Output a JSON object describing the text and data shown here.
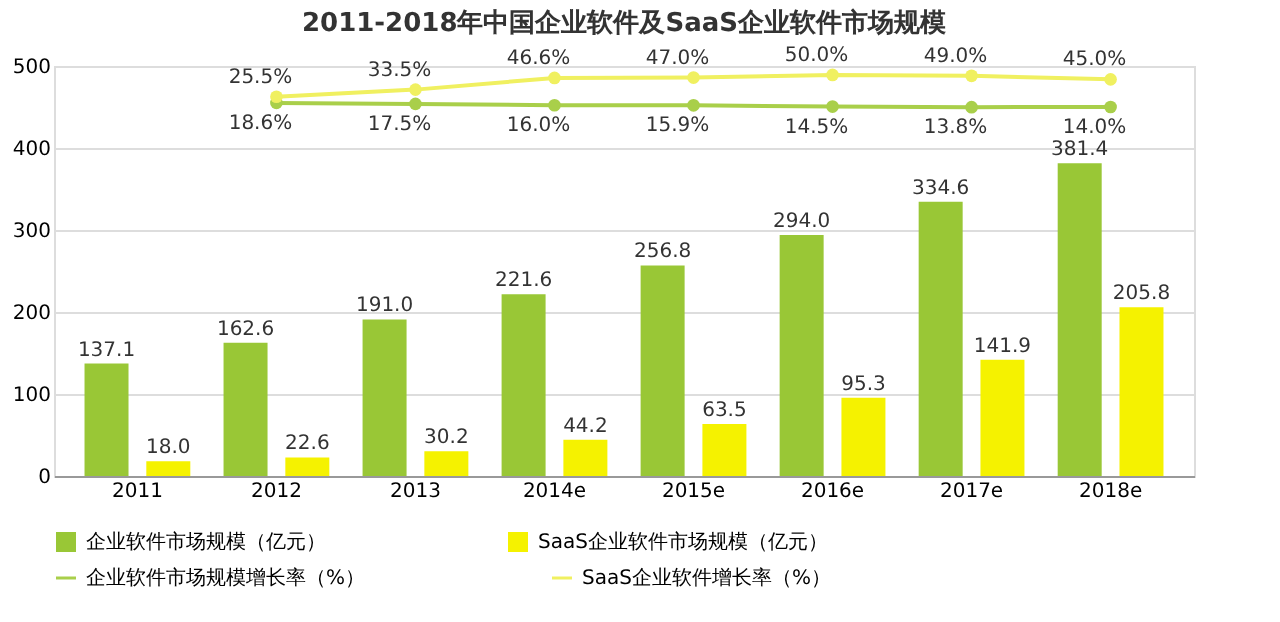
{
  "chart_data": {
    "type": "bar",
    "title": "2011-2018年中国企业软件及SaaS企业软件市场规模",
    "categories": [
      "2011",
      "2012",
      "2013",
      "2014e",
      "2015e",
      "2016e",
      "2017e",
      "2018e"
    ],
    "ylim": [
      0,
      500
    ],
    "yticks": [
      0,
      100,
      200,
      300,
      400,
      500
    ],
    "y2lim": [
      -400,
      60
    ],
    "grid": "y",
    "legend": "bottom",
    "marker": "circle",
    "line_style": "solid",
    "series": [
      {
        "name": "企业软件市场规模（亿元）",
        "color": "#99c736",
        "values": [
          137.1,
          162.6,
          191.0,
          221.6,
          256.8,
          294.0,
          334.6,
          381.4
        ],
        "value_labels": [
          "137.1",
          "162.6",
          "191.0",
          "221.6",
          "256.8",
          "294.0",
          "334.6",
          "381.4"
        ]
      },
      {
        "name": "SaaS企业软件市场规模（亿元）",
        "color": "#f5f200",
        "values": [
          18.0,
          22.6,
          30.2,
          44.2,
          63.5,
          95.3,
          141.9,
          205.8
        ],
        "value_labels": [
          "18.0",
          "22.6",
          "30.2",
          "44.2",
          "63.5",
          "95.3",
          "141.9",
          "205.8"
        ]
      },
      {
        "name": "企业软件市场规模增长率（%）",
        "type": "line",
        "axis": "y2",
        "color": "#a9cf4a",
        "values": [
          null,
          18.6,
          17.5,
          16.0,
          15.9,
          14.5,
          13.8,
          14.0
        ],
        "value_labels": [
          null,
          "18.6%",
          "17.5%",
          "16.0%",
          "15.9%",
          "14.5%",
          "13.8%",
          "14.0%"
        ]
      },
      {
        "name": "SaaS企业软件增长率（%）",
        "type": "line",
        "axis": "y2",
        "color": "#f0f060",
        "values": [
          null,
          25.5,
          33.5,
          46.6,
          47.0,
          50.0,
          49.0,
          45.0
        ],
        "value_labels": [
          null,
          "25.5%",
          "33.5%",
          "46.6%",
          "47.0%",
          "50.0%",
          "49.0%",
          "45.0%"
        ]
      }
    ]
  }
}
